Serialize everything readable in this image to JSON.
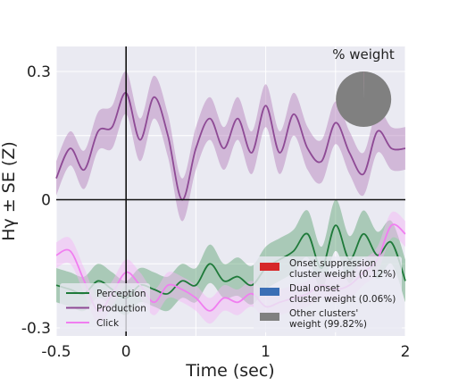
{
  "chart_data": {
    "type": "line",
    "xlabel": "Time (sec)",
    "ylabel": "Hγ ± SE (Z)",
    "xlim": [
      -0.5,
      2
    ],
    "ylim": [
      -0.3,
      0.3
    ],
    "xticks": [
      {
        "value": -0.5,
        "label": "-0.5"
      },
      {
        "value": 0,
        "label": "0"
      },
      {
        "value": 1,
        "label": "1"
      },
      {
        "value": 2,
        "label": "2"
      }
    ],
    "yticks": [
      {
        "value": 0.3,
        "label": "0.3"
      },
      {
        "value": 0,
        "label": "0"
      },
      {
        "value": -0.3,
        "label": "-0.3"
      }
    ],
    "grid": true,
    "reference_lines": {
      "x": 0,
      "y": 0
    },
    "series": [
      {
        "name": "Perception",
        "color": "#1f7a3a",
        "band_color": "#5aa16e",
        "x": [
          -0.5,
          -0.4,
          -0.3,
          -0.2,
          -0.1,
          0.0,
          0.1,
          0.2,
          0.3,
          0.4,
          0.5,
          0.6,
          0.7,
          0.8,
          0.9,
          1.0,
          1.1,
          1.2,
          1.3,
          1.4,
          1.5,
          1.6,
          1.7,
          1.8,
          1.9,
          2.0
        ],
        "y": [
          -0.2,
          -0.21,
          -0.22,
          -0.19,
          -0.21,
          -0.23,
          -0.2,
          -0.21,
          -0.22,
          -0.19,
          -0.2,
          -0.15,
          -0.19,
          -0.18,
          -0.2,
          -0.16,
          -0.14,
          -0.12,
          -0.08,
          -0.16,
          -0.06,
          -0.14,
          -0.08,
          -0.13,
          -0.1,
          -0.19
        ],
        "se": [
          0.04,
          0.04,
          0.04,
          0.04,
          0.04,
          0.04,
          0.04,
          0.04,
          0.04,
          0.04,
          0.04,
          0.045,
          0.04,
          0.045,
          0.045,
          0.05,
          0.05,
          0.05,
          0.055,
          0.05,
          0.06,
          0.055,
          0.055,
          0.055,
          0.05,
          0.05
        ]
      },
      {
        "name": "Production",
        "color": "#8e4a95",
        "band_color": "#b47cb8",
        "x": [
          -0.5,
          -0.4,
          -0.3,
          -0.2,
          -0.1,
          0.0,
          0.1,
          0.2,
          0.3,
          0.4,
          0.5,
          0.6,
          0.7,
          0.8,
          0.9,
          1.0,
          1.1,
          1.2,
          1.3,
          1.4,
          1.5,
          1.6,
          1.7,
          1.8,
          1.9,
          2.0
        ],
        "y": [
          0.05,
          0.12,
          0.07,
          0.16,
          0.17,
          0.25,
          0.14,
          0.24,
          0.15,
          0.0,
          0.12,
          0.19,
          0.12,
          0.19,
          0.11,
          0.22,
          0.11,
          0.2,
          0.12,
          0.09,
          0.18,
          0.11,
          0.06,
          0.16,
          0.12,
          0.12
        ],
        "se": [
          0.04,
          0.04,
          0.045,
          0.045,
          0.05,
          0.05,
          0.05,
          0.05,
          0.05,
          0.05,
          0.05,
          0.05,
          0.05,
          0.05,
          0.05,
          0.05,
          0.05,
          0.05,
          0.05,
          0.05,
          0.05,
          0.05,
          0.05,
          0.05,
          0.05,
          0.05
        ]
      },
      {
        "name": "Click",
        "color": "#f07ef0",
        "band_color": "#f7b3f7",
        "x": [
          -0.5,
          -0.4,
          -0.3,
          -0.2,
          -0.1,
          0.0,
          0.1,
          0.2,
          0.3,
          0.4,
          0.5,
          0.6,
          0.7,
          0.8,
          0.9,
          1.0,
          1.1,
          1.2,
          1.3,
          1.4,
          1.5,
          1.6,
          1.7,
          1.8,
          1.9,
          2.0
        ],
        "y": [
          -0.13,
          -0.12,
          -0.19,
          -0.26,
          -0.22,
          -0.17,
          -0.2,
          -0.24,
          -0.2,
          -0.21,
          -0.23,
          -0.26,
          -0.23,
          -0.24,
          -0.22,
          -0.25,
          -0.24,
          -0.23,
          -0.22,
          -0.2,
          -0.21,
          -0.2,
          -0.17,
          -0.14,
          -0.06,
          -0.08
        ],
        "se": [
          0.03,
          0.03,
          0.03,
          0.03,
          0.03,
          0.03,
          0.03,
          0.03,
          0.03,
          0.03,
          0.03,
          0.03,
          0.03,
          0.03,
          0.03,
          0.03,
          0.03,
          0.03,
          0.03,
          0.03,
          0.03,
          0.03,
          0.03,
          0.03,
          0.03,
          0.03
        ]
      }
    ],
    "legend": {
      "placement": "lower-left",
      "items": [
        {
          "label": "Perception",
          "color": "#1f7a3a"
        },
        {
          "label": "Production",
          "color": "#8e4a95"
        },
        {
          "label": "Click",
          "color": "#f07ef0"
        }
      ]
    },
    "pie": {
      "title": "% weight",
      "slices": [
        {
          "label": "Onset suppression cluster weight (0.12%)",
          "lines": [
            "Onset suppression",
            "cluster weight (0.12%)"
          ],
          "value": 0.12,
          "color": "#d62728"
        },
        {
          "label": "Dual onset cluster weight (0.06%)",
          "lines": [
            "Dual onset",
            "cluster weight (0.06%)"
          ],
          "value": 0.06,
          "color": "#3a6fb5"
        },
        {
          "label": "Other clusters' weight (99.82%)",
          "lines": [
            "Other clusters'",
            "weight (99.82%)"
          ],
          "value": 99.82,
          "color": "#808080"
        }
      ]
    },
    "background_color": "#eaeaf2"
  }
}
